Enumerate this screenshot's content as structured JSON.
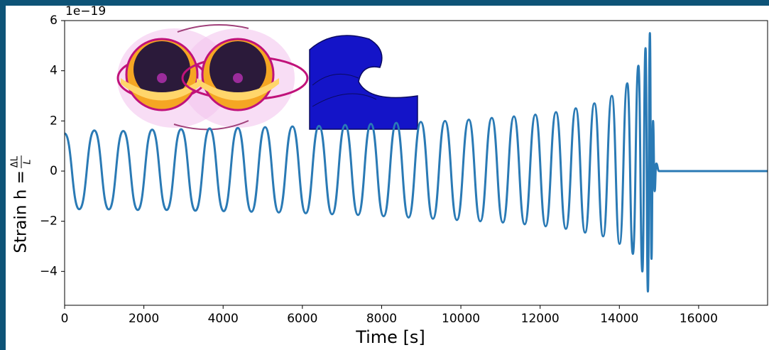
{
  "chart_data": {
    "type": "line",
    "xlabel": "Time [s]",
    "ylabel": "Strain h = ",
    "ylabel_numerator": "ΔL",
    "ylabel_denominator": "L",
    "y_offset_label": "1e−19",
    "xlim": [
      0,
      17740
    ],
    "ylim": [
      -5.35,
      6
    ],
    "xticks": [
      0,
      2000,
      4000,
      6000,
      8000,
      10000,
      12000,
      14000,
      16000
    ],
    "yticks": [
      {
        "value": -4,
        "label": "−4"
      },
      {
        "value": -2,
        "label": "−2"
      },
      0,
      2,
      4,
      6
    ],
    "grid": false,
    "series": [
      {
        "name": "strain",
        "color": "#2a7ab5",
        "x": [
          0,
          370,
          750,
          1115,
          1480,
          1845,
          2210,
          2575,
          2940,
          3300,
          3660,
          4015,
          4370,
          4715,
          5060,
          5405,
          5750,
          6085,
          6420,
          6750,
          7080,
          7405,
          7730,
          8050,
          8370,
          8680,
          8990,
          9295,
          9600,
          9900,
          10200,
          10490,
          10780,
          11060,
          11340,
          11610,
          11880,
          12140,
          12400,
          12650,
          12900,
          13135,
          13370,
          13590,
          13810,
          14005,
          14200,
          14340,
          14480,
          14580,
          14660,
          14720,
          14770,
          14810,
          14850,
          14890,
          14930,
          15000,
          17740
        ],
        "values": [
          1.5,
          -1.52,
          1.62,
          -1.53,
          1.6,
          -1.55,
          1.65,
          -1.55,
          1.67,
          -1.58,
          1.7,
          -1.6,
          1.72,
          -1.62,
          1.75,
          -1.65,
          1.78,
          -1.68,
          1.8,
          -1.72,
          1.84,
          -1.75,
          1.88,
          -1.8,
          1.92,
          -1.85,
          1.96,
          -1.9,
          2.0,
          -1.95,
          2.05,
          -2.0,
          2.12,
          -2.05,
          2.18,
          -2.12,
          2.25,
          -2.2,
          2.35,
          -2.3,
          2.5,
          -2.45,
          2.7,
          -2.6,
          3.0,
          -2.9,
          3.5,
          -3.3,
          4.2,
          -4.0,
          4.9,
          -4.8,
          5.5,
          -3.5,
          2.0,
          -0.8,
          0.3,
          0,
          0
        ]
      }
    ]
  }
}
